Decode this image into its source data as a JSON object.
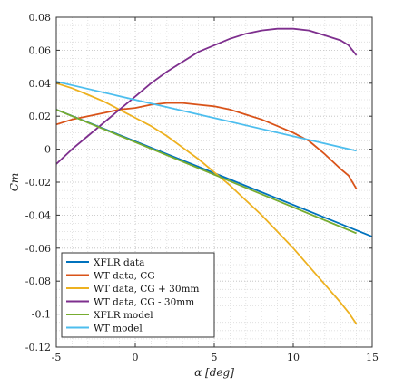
{
  "chart_data": {
    "type": "line",
    "xlabel": "α [deg]",
    "ylabel": "Cm",
    "xlim": [
      -5,
      15
    ],
    "ylim": [
      -0.12,
      0.08
    ],
    "x_ticks": [
      -5,
      0,
      5,
      10,
      15
    ],
    "y_ticks": [
      -0.12,
      -0.1,
      -0.08,
      -0.06,
      -0.04,
      -0.02,
      0,
      0.02,
      0.04,
      0.06,
      0.08
    ],
    "x_tick_labels": [
      "-5",
      "0",
      "5",
      "10",
      "15"
    ],
    "y_tick_labels": [
      "-0.12",
      "-0.1",
      "-0.08",
      "-0.06",
      "-0.04",
      "-0.02",
      "0",
      "0.02",
      "0.04",
      "0.06",
      "0.08"
    ],
    "grid": true,
    "legend_position": "bottom-left",
    "series": [
      {
        "name": "XFLR data",
        "color": "#0072BD",
        "x": [
          -5,
          15
        ],
        "y": [
          0.024,
          -0.053
        ]
      },
      {
        "name": "WT data, CG",
        "color": "#D95319",
        "x": [
          -5,
          -4,
          -3,
          -2,
          -1,
          0,
          1,
          2,
          3,
          4,
          5,
          6,
          7,
          8,
          9,
          10,
          11,
          12,
          13,
          13.5,
          14
        ],
        "y": [
          0.015,
          0.018,
          0.02,
          0.022,
          0.024,
          0.025,
          0.027,
          0.028,
          0.028,
          0.027,
          0.026,
          0.024,
          0.021,
          0.018,
          0.014,
          0.01,
          0.005,
          -0.003,
          -0.012,
          -0.016,
          -0.024
        ]
      },
      {
        "name": "WT data, CG + 30mm",
        "color": "#EDB120",
        "x": [
          -5,
          -4,
          -3,
          -2,
          -1,
          0,
          1,
          2,
          3,
          4,
          5,
          6,
          7,
          8,
          9,
          10,
          11,
          12,
          13,
          13.5,
          14
        ],
        "y": [
          0.04,
          0.037,
          0.033,
          0.029,
          0.024,
          0.019,
          0.014,
          0.008,
          0.001,
          -0.006,
          -0.014,
          -0.022,
          -0.031,
          -0.04,
          -0.05,
          -0.06,
          -0.071,
          -0.082,
          -0.093,
          -0.099,
          -0.106
        ]
      },
      {
        "name": "WT data, CG - 30mm",
        "color": "#7E2F8E",
        "x": [
          -5,
          -4,
          -3,
          -2,
          -1,
          0,
          1,
          2,
          3,
          4,
          5,
          6,
          7,
          8,
          9,
          10,
          11,
          12,
          13,
          13.5,
          14
        ],
        "y": [
          -0.009,
          0.0,
          0.008,
          0.016,
          0.024,
          0.032,
          0.04,
          0.047,
          0.053,
          0.059,
          0.063,
          0.067,
          0.07,
          0.072,
          0.073,
          0.073,
          0.072,
          0.069,
          0.066,
          0.063,
          0.057
        ]
      },
      {
        "name": "XFLR model",
        "color": "#77AC30",
        "x": [
          -5,
          14
        ],
        "y": [
          0.024,
          -0.051
        ]
      },
      {
        "name": "WT model",
        "color": "#4DBEEE",
        "x": [
          -5,
          14
        ],
        "y": [
          0.041,
          -0.001
        ]
      }
    ]
  }
}
